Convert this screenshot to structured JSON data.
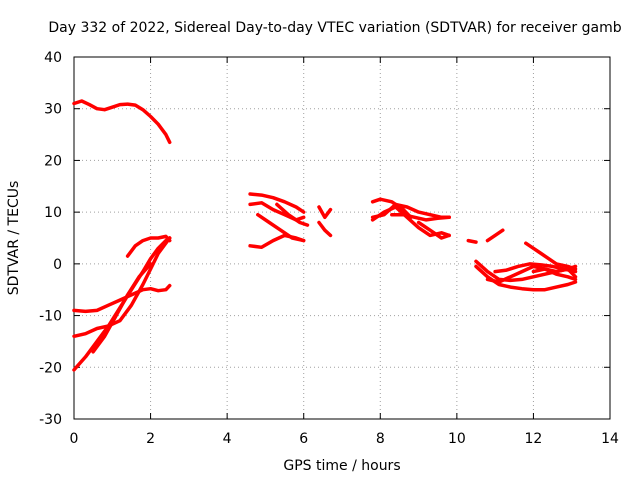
{
  "chart_data": {
    "type": "line",
    "title": "Day 332 of 2022, Sidereal Day-to-day VTEC variation (SDTVAR) for receiver gamb",
    "xlabel": "GPS time / hours",
    "ylabel": "SDTVAR / TECUs",
    "xlim": [
      0,
      14
    ],
    "ylim": [
      -30,
      40
    ],
    "xticks": [
      0,
      2,
      4,
      6,
      8,
      10,
      12,
      14
    ],
    "yticks": [
      -30,
      -20,
      -10,
      0,
      10,
      20,
      30,
      40
    ],
    "grid": true,
    "color": "#ff0000",
    "series": [
      {
        "name": "trace-1",
        "x": [
          0,
          0.2,
          0.4,
          0.6,
          0.8,
          1.0,
          1.2,
          1.4,
          1.6,
          1.8,
          2.0,
          2.2,
          2.4,
          2.5
        ],
        "y": [
          31,
          31.5,
          30.8,
          30,
          29.8,
          30.3,
          30.8,
          30.9,
          30.7,
          29.8,
          28.5,
          27,
          25,
          23.5
        ]
      },
      {
        "name": "trace-2",
        "x": [
          0,
          0.3,
          0.6,
          0.9,
          1.2,
          1.5,
          1.8,
          2.0,
          2.2,
          2.4,
          2.5
        ],
        "y": [
          -20.5,
          -18,
          -15,
          -12,
          -8.5,
          -5,
          -1.5,
          1,
          3,
          4.5,
          5
        ]
      },
      {
        "name": "trace-3",
        "x": [
          0,
          0.3,
          0.6,
          0.9,
          1.2,
          1.5,
          1.8,
          2.0,
          2.2,
          2.5
        ],
        "y": [
          -14,
          -13.5,
          -12.5,
          -12,
          -11,
          -8,
          -4,
          -1,
          2,
          5
        ]
      },
      {
        "name": "trace-4",
        "x": [
          0,
          0.3,
          0.6,
          0.9,
          1.2,
          1.5,
          1.8,
          2.0,
          2.2,
          2.4,
          2.5
        ],
        "y": [
          -9,
          -9.2,
          -9,
          -8,
          -7,
          -6,
          -5,
          -4.8,
          -5.2,
          -5,
          -4.2
        ]
      },
      {
        "name": "trace-5",
        "x": [
          0.5,
          0.8,
          1.1,
          1.4,
          1.7,
          2.0
        ],
        "y": [
          -17,
          -14,
          -10,
          -6,
          -2.5,
          0
        ]
      },
      {
        "name": "trace-6",
        "x": [
          1.4,
          1.6,
          1.8,
          2.0,
          2.2,
          2.4,
          2.5
        ],
        "y": [
          1.5,
          3.5,
          4.5,
          5,
          5,
          5.3,
          4.5
        ]
      },
      {
        "name": "trace-7",
        "x": [
          4.6,
          4.9,
          5.2,
          5.5,
          5.8,
          6.0
        ],
        "y": [
          13.5,
          13.3,
          12.8,
          12,
          11,
          10
        ]
      },
      {
        "name": "trace-8",
        "x": [
          4.6,
          4.9,
          5.2,
          5.5,
          5.8,
          6.0
        ],
        "y": [
          11.5,
          11.8,
          10.5,
          9.5,
          8.5,
          9
        ]
      },
      {
        "name": "trace-9",
        "x": [
          4.6,
          4.9,
          5.2,
          5.5,
          5.8,
          6.0
        ],
        "y": [
          3.5,
          3.2,
          4.5,
          5.5,
          5,
          4.5
        ]
      },
      {
        "name": "trace-10",
        "x": [
          4.8,
          5.1,
          5.4,
          5.7,
          6.0
        ],
        "y": [
          9.5,
          8,
          6.5,
          5,
          4.5
        ]
      },
      {
        "name": "trace-11",
        "x": [
          5.3,
          5.6,
          5.9,
          6.1
        ],
        "y": [
          11.5,
          9.5,
          8,
          7.5
        ]
      },
      {
        "name": "trace-12",
        "x": [
          6.4,
          6.55,
          6.7
        ],
        "y": [
          11,
          9,
          10.5
        ]
      },
      {
        "name": "trace-13",
        "x": [
          6.4,
          6.55,
          6.7
        ],
        "y": [
          8,
          6.5,
          5.5
        ]
      },
      {
        "name": "trace-14",
        "x": [
          7.8,
          8.0,
          8.3,
          8.6,
          8.8
        ],
        "y": [
          12,
          12.5,
          12,
          10.5,
          9
        ]
      },
      {
        "name": "trace-15",
        "x": [
          7.8,
          8.1,
          8.4,
          8.7,
          9.0,
          9.3,
          9.6,
          9.8
        ],
        "y": [
          9,
          9.5,
          11.5,
          11,
          10,
          9.5,
          9,
          9
        ]
      },
      {
        "name": "trace-16",
        "x": [
          7.8,
          8.1,
          8.4,
          8.7,
          9.0,
          9.3,
          9.6,
          9.8
        ],
        "y": [
          8.5,
          10,
          11,
          9,
          7,
          5.5,
          6,
          5.5
        ]
      },
      {
        "name": "trace-17",
        "x": [
          8.3,
          8.6,
          8.9,
          9.2,
          9.5,
          9.8
        ],
        "y": [
          9.5,
          9.5,
          9,
          8.5,
          8.8,
          9
        ]
      },
      {
        "name": "trace-18",
        "x": [
          9.0,
          9.3,
          9.6,
          9.8
        ],
        "y": [
          8,
          6.5,
          5,
          5.5
        ]
      },
      {
        "name": "trace-19",
        "x": [
          10.3,
          10.5
        ],
        "y": [
          4.5,
          4.2
        ]
      },
      {
        "name": "trace-20",
        "x": [
          10.8,
          11.0,
          11.2
        ],
        "y": [
          4.5,
          5.5,
          6.5
        ]
      },
      {
        "name": "trace-21",
        "x": [
          10.5,
          10.8,
          11.1,
          11.4,
          11.7,
          12.0,
          12.3,
          12.6,
          12.9,
          13.1
        ],
        "y": [
          0.5,
          -1.5,
          -3,
          -3.2,
          -3,
          -2.5,
          -2,
          -1.5,
          -1,
          -0.5
        ]
      },
      {
        "name": "trace-22",
        "x": [
          10.5,
          10.8,
          11.1,
          11.4,
          11.7,
          12.0,
          12.3,
          12.6,
          12.9,
          13.1
        ],
        "y": [
          -0.5,
          -2.5,
          -4,
          -4.5,
          -4.8,
          -5,
          -5,
          -4.5,
          -4,
          -3.5
        ]
      },
      {
        "name": "trace-23",
        "x": [
          10.8,
          11.1,
          11.4,
          11.7,
          12.0,
          12.3,
          12.6,
          12.9,
          13.1
        ],
        "y": [
          -3,
          -3.5,
          -2.5,
          -1.5,
          -0.5,
          -1,
          -2,
          -2.5,
          -3
        ]
      },
      {
        "name": "trace-24",
        "x": [
          11.0,
          11.3,
          11.6,
          11.9,
          12.2,
          12.5,
          12.8,
          13.1
        ],
        "y": [
          -1.5,
          -1.2,
          -0.5,
          0,
          -0.2,
          -0.5,
          -1,
          -1.5
        ]
      },
      {
        "name": "trace-25",
        "x": [
          11.8,
          12.0,
          12.2,
          12.4,
          12.6,
          12.9,
          13.1
        ],
        "y": [
          4,
          3,
          2,
          1,
          0,
          -0.5,
          -1
        ]
      },
      {
        "name": "trace-26",
        "x": [
          12.0,
          12.3,
          12.6,
          12.9,
          13.1
        ],
        "y": [
          -1.5,
          -1,
          -1.5,
          -1,
          -2.5
        ]
      }
    ]
  }
}
